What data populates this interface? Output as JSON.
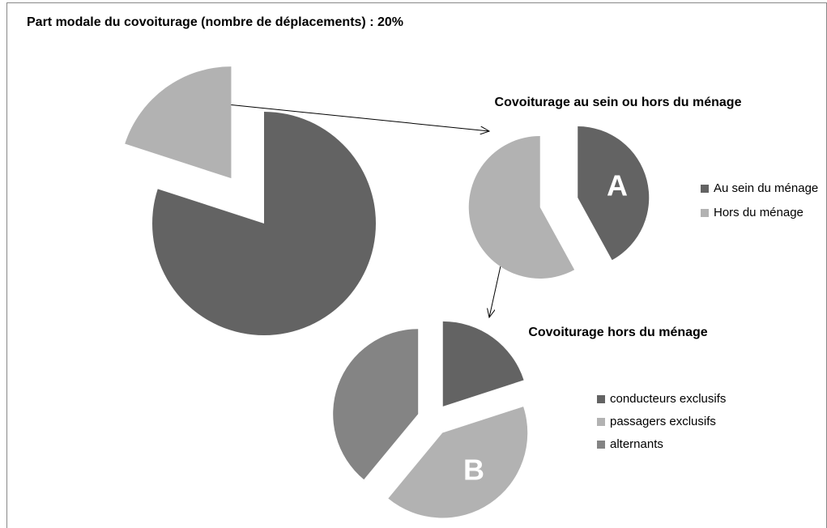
{
  "chart_data": [
    {
      "type": "pie",
      "title": "Part modale du covoiturage  (nombre de déplacements) : 20%",
      "values": [
        80,
        20
      ],
      "colors": [
        "#636363",
        "#b2b2b2"
      ],
      "explode": [
        false,
        true
      ]
    },
    {
      "type": "pie",
      "title": "Covoiturage au sein ou hors du ménage",
      "annotation": "A",
      "categories": [
        "Au sein du ménage",
        "Hors du ménage"
      ],
      "values": [
        42,
        58
      ],
      "colors": [
        "#636363",
        "#b2b2b2"
      ],
      "explode": [
        true,
        true
      ]
    },
    {
      "type": "pie",
      "title": "Covoiturage hors du ménage",
      "annotation": "B",
      "categories": [
        "conducteurs exclusifs",
        "passagers exclusifs",
        "alternants"
      ],
      "values": [
        20,
        41,
        39
      ],
      "colors": [
        "#636363",
        "#b2b2b2",
        "#848484"
      ],
      "explode": [
        true,
        true,
        true
      ]
    }
  ]
}
